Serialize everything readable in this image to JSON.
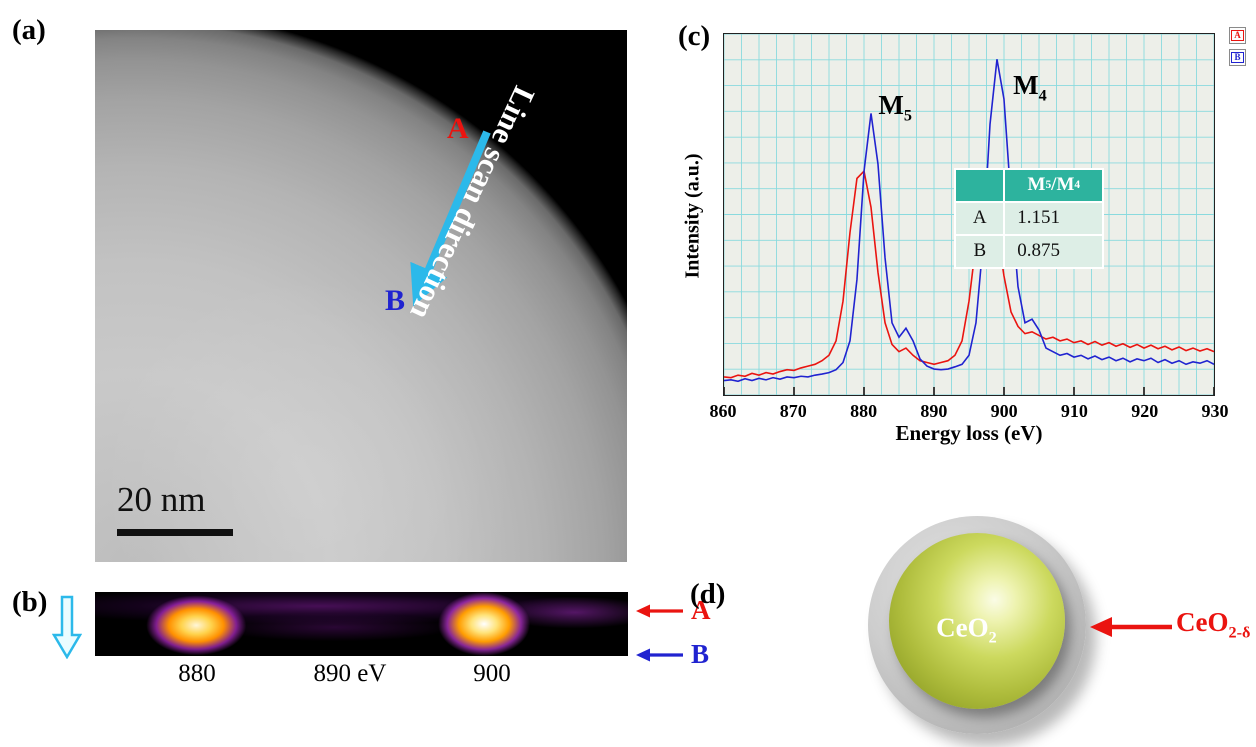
{
  "colors": {
    "red": "#ea1410",
    "blue": "#2023d0",
    "cyan": "#2cb9ea",
    "teal": "#2db39e"
  },
  "figure": {
    "panel_a": {
      "label": "(a)",
      "point_a": "A",
      "point_b": "B",
      "scan_text": "Line scan direction",
      "scale_bar": "20 nm"
    },
    "panel_b": {
      "label": "(b)",
      "ticks": [
        "880",
        "890 eV",
        "900"
      ],
      "arrow_a": "A",
      "arrow_b": "B"
    },
    "panel_c": {
      "label": "(c)"
    },
    "panel_d": {
      "label": "(d)",
      "core": {
        "base": "CeO",
        "sub": "2"
      },
      "shell": {
        "base": "CeO",
        "sub": "2-δ"
      }
    }
  },
  "chart_data": {
    "type": "line",
    "title": "",
    "xlabel": "Energy loss (eV)",
    "ylabel": "Intensity (a.u.)",
    "xlim": [
      860,
      930
    ],
    "ylim": [
      0,
      1
    ],
    "x_ticks": [
      860,
      870,
      880,
      890,
      900,
      910,
      920,
      930
    ],
    "grid": true,
    "grid_step_x": 2.5,
    "grid_rows": 14,
    "grid_color": "#8adade",
    "background": "#edefe9",
    "legend_position": "top-right-outside",
    "peak_labels": {
      "m5": {
        "base": "M",
        "sub": "5"
      },
      "m4": {
        "base": "M",
        "sub": "4"
      }
    },
    "inset_table": {
      "separator": "/",
      "rows": [
        {
          "name": "A",
          "value": "1.151"
        },
        {
          "name": "B",
          "value": "0.875"
        }
      ]
    },
    "x": [
      860,
      861,
      862,
      863,
      864,
      865,
      866,
      867,
      868,
      869,
      870,
      871,
      872,
      873,
      874,
      875,
      876,
      877,
      878,
      879,
      880,
      881,
      882,
      883,
      884,
      885,
      886,
      887,
      888,
      889,
      890,
      891,
      892,
      893,
      894,
      895,
      896,
      897,
      898,
      899,
      900,
      901,
      902,
      903,
      904,
      905,
      906,
      907,
      908,
      909,
      910,
      911,
      912,
      913,
      914,
      915,
      916,
      917,
      918,
      919,
      920,
      921,
      922,
      923,
      924,
      925,
      926,
      927,
      928,
      929,
      930
    ],
    "series": [
      {
        "name": "A",
        "color": "#ea1410",
        "values": [
          0.05,
          0.048,
          0.055,
          0.052,
          0.06,
          0.055,
          0.062,
          0.058,
          0.065,
          0.07,
          0.068,
          0.075,
          0.08,
          0.085,
          0.095,
          0.11,
          0.15,
          0.26,
          0.45,
          0.6,
          0.62,
          0.52,
          0.34,
          0.2,
          0.14,
          0.12,
          0.13,
          0.11,
          0.095,
          0.09,
          0.085,
          0.09,
          0.095,
          0.11,
          0.15,
          0.26,
          0.42,
          0.53,
          0.54,
          0.46,
          0.33,
          0.23,
          0.19,
          0.17,
          0.175,
          0.165,
          0.155,
          0.16,
          0.15,
          0.155,
          0.145,
          0.15,
          0.14,
          0.148,
          0.138,
          0.145,
          0.135,
          0.142,
          0.132,
          0.14,
          0.13,
          0.138,
          0.128,
          0.135,
          0.125,
          0.133,
          0.123,
          0.13,
          0.122,
          0.128,
          0.12
        ]
      },
      {
        "name": "B",
        "color": "#2023d0",
        "values": [
          0.04,
          0.042,
          0.038,
          0.045,
          0.04,
          0.046,
          0.042,
          0.048,
          0.044,
          0.05,
          0.048,
          0.052,
          0.05,
          0.055,
          0.058,
          0.062,
          0.07,
          0.09,
          0.15,
          0.32,
          0.62,
          0.78,
          0.64,
          0.38,
          0.2,
          0.16,
          0.185,
          0.15,
          0.1,
          0.08,
          0.072,
          0.07,
          0.072,
          0.078,
          0.085,
          0.11,
          0.2,
          0.42,
          0.75,
          0.93,
          0.82,
          0.54,
          0.3,
          0.2,
          0.21,
          0.18,
          0.13,
          0.12,
          0.11,
          0.115,
          0.105,
          0.11,
          0.1,
          0.108,
          0.098,
          0.105,
          0.095,
          0.102,
          0.092,
          0.1,
          0.095,
          0.102,
          0.09,
          0.098,
          0.088,
          0.095,
          0.085,
          0.092,
          0.088,
          0.095,
          0.085
        ]
      }
    ]
  }
}
